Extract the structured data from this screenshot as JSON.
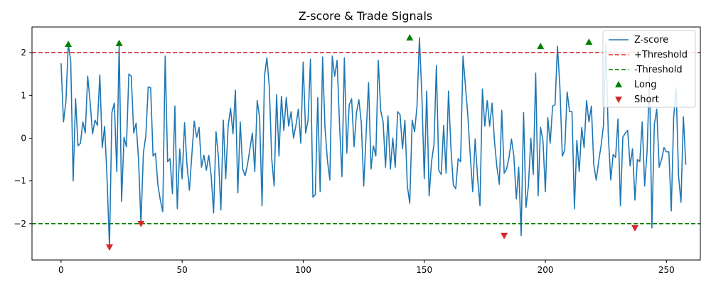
{
  "chart_data": {
    "type": "line",
    "title": "Z-score & Trade Signals",
    "xlabel": "",
    "ylabel": "",
    "xlim": [
      -12,
      264
    ],
    "ylim": [
      -2.85,
      2.6
    ],
    "x_ticks": [
      0,
      50,
      100,
      150,
      200,
      250
    ],
    "y_ticks": [
      -2,
      -1,
      0,
      1,
      2
    ],
    "x_tick_labels": [
      "0",
      "50",
      "100",
      "150",
      "200",
      "250"
    ],
    "y_tick_labels": [
      "−2",
      "−1",
      "0",
      "1",
      "2"
    ],
    "grid": false,
    "legend_position": "top-right",
    "series": [
      {
        "name": "Z-score",
        "color": "#1f77b4",
        "style": "solid",
        "y": [
          1.75,
          0.38,
          0.85,
          2.2,
          1.8,
          -1.0,
          0.92,
          -0.18,
          -0.12,
          0.38,
          0.12,
          1.45,
          0.85,
          0.1,
          0.42,
          0.3,
          1.48,
          -0.22,
          0.28,
          -0.95,
          -2.55,
          0.6,
          0.82,
          -0.78,
          2.22,
          -1.48,
          0.02,
          -0.2,
          1.5,
          1.45,
          0.12,
          0.35,
          -0.5,
          -2.0,
          -0.35,
          0.05,
          1.2,
          1.18,
          -0.42,
          -0.35,
          -1.1,
          -1.45,
          -1.72,
          1.92,
          -0.55,
          -0.48,
          -1.3,
          0.75,
          -1.65,
          -0.25,
          -0.95,
          0.36,
          -0.62,
          -1.22,
          -0.4,
          0.4,
          0.02,
          0.25,
          -0.68,
          -0.4,
          -0.75,
          -0.4,
          -0.88,
          -1.75,
          0.15,
          -0.45,
          -1.68,
          0.42,
          -0.95,
          0.28,
          0.7,
          0.1,
          1.12,
          -1.28,
          0.38,
          -0.72,
          -0.88,
          -0.62,
          -0.25,
          0.12,
          -0.78,
          0.88,
          0.48,
          -1.58,
          1.45,
          1.88,
          1.2,
          -0.48,
          -1.12,
          1.02,
          -0.42,
          0.98,
          0.18,
          0.95,
          0.28,
          0.62,
          0.0,
          0.3,
          0.68,
          -0.12,
          1.78,
          0.12,
          0.42,
          1.85,
          -1.38,
          -1.32,
          0.95,
          -1.25,
          1.9,
          0.25,
          -0.52,
          -0.98,
          1.92,
          1.45,
          1.82,
          0.32,
          -0.9,
          1.88,
          -0.35,
          0.78,
          0.92,
          -0.2,
          0.6,
          0.9,
          0.35,
          -1.12,
          0.12,
          1.3,
          -0.72,
          -0.18,
          -0.42,
          1.82,
          0.65,
          0.38,
          -0.68,
          0.52,
          -0.72,
          0.0,
          -0.68,
          0.62,
          0.55,
          -0.25,
          0.42,
          -1.12,
          -1.52,
          0.42,
          0.15,
          0.75,
          2.35,
          1.0,
          -0.95,
          1.1,
          -1.35,
          -0.55,
          -0.15,
          1.7,
          -0.75,
          -0.85,
          0.3,
          -0.82,
          1.1,
          -0.22,
          -1.1,
          -1.18,
          -0.48,
          -0.55,
          1.92,
          1.22,
          0.52,
          -0.42,
          -1.25,
          -0.02,
          -0.92,
          -1.58,
          1.15,
          0.28,
          0.88,
          0.28,
          0.82,
          -0.08,
          -0.68,
          -1.08,
          0.65,
          -0.82,
          -0.72,
          -0.45,
          -0.02,
          -0.42,
          -1.42,
          -0.68,
          -2.28,
          0.6,
          -1.62,
          -1.12,
          0.0,
          -0.85,
          1.52,
          -1.35,
          0.25,
          -0.05,
          -1.25,
          0.48,
          -0.12,
          0.75,
          0.78,
          2.15,
          1.2,
          -0.42,
          -0.28,
          1.08,
          0.62,
          0.62,
          -1.65,
          -0.05,
          -0.78,
          0.25,
          -0.22,
          0.88,
          0.38,
          0.75,
          -0.62,
          -0.98,
          -0.55,
          -0.18,
          0.3,
          2.25,
          0.05,
          -0.98,
          -0.38,
          -0.45,
          0.45,
          -1.58,
          0.02,
          0.12,
          0.18,
          -0.65,
          -0.25,
          -1.45,
          -0.5,
          -0.55,
          0.38,
          -1.12,
          -0.32,
          1.45,
          -2.1,
          0.32,
          0.68,
          -0.68,
          -0.5,
          -0.22,
          -0.32,
          -0.32,
          -1.7,
          0.5,
          1.18,
          -0.88,
          -1.5,
          0.5,
          -0.62
        ]
      },
      {
        "name": "+Threshold",
        "color": "#d62728",
        "style": "dashed",
        "y_constant": 2
      },
      {
        "name": "-Threshold",
        "color": "#008000",
        "style": "dashed",
        "y_constant": -2
      },
      {
        "name": "Long",
        "color": "#008000",
        "marker": "triangle-up",
        "x": [
          3,
          24,
          144,
          198,
          218
        ],
        "y": [
          2.2,
          2.22,
          2.35,
          2.15,
          2.25
        ]
      },
      {
        "name": "Short",
        "color": "#d62728",
        "marker": "triangle-down",
        "x": [
          20,
          33,
          183,
          237
        ],
        "y": [
          -2.55,
          -2.0,
          -2.28,
          -2.1
        ]
      }
    ]
  }
}
